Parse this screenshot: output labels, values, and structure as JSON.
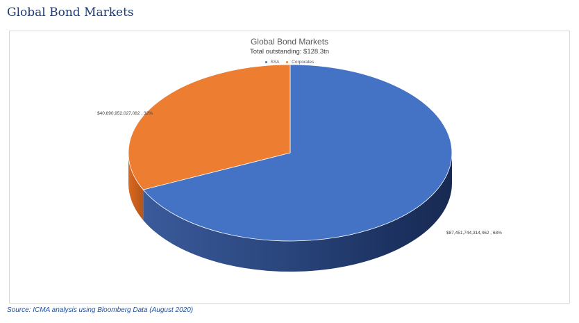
{
  "page": {
    "title": "Global Bond Markets",
    "source": "Source: ICMA analysis using Bloomberg Data (August 2020)"
  },
  "chart_data": {
    "type": "pie",
    "title": "Global Bond Markets",
    "subtitle": "Total outstanding: $128.3tn",
    "legend": [
      "SSA",
      "Corporates"
    ],
    "legend_position": "top",
    "three_d": true,
    "slices": [
      {
        "name": "SSA",
        "value": 87451744314462,
        "percent": 68,
        "label": "$87,451,744,314,462 , 68%",
        "color": "#4472c4"
      },
      {
        "name": "Corporates",
        "value": 40890952027082,
        "percent": 32,
        "label": "$40,890,952,027,082 , 32%",
        "color": "#ed7d31"
      }
    ]
  }
}
